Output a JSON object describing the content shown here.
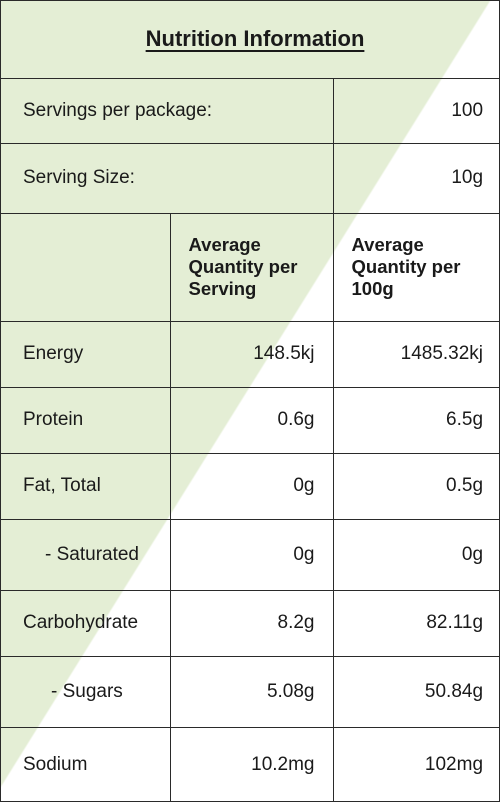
{
  "title": "Nutrition Information",
  "servings_per_package": {
    "label": "Servings per package:",
    "value": "100"
  },
  "serving_size": {
    "label": "Serving Size:",
    "value": "10g"
  },
  "columns": {
    "per_serving": "Average Quantity per Serving",
    "per_100g": "Average Quantity per 100g"
  },
  "rows": [
    {
      "label": "Energy",
      "per_serving": "148.5kj",
      "per_100g": "1485.32kj"
    },
    {
      "label": "Protein",
      "per_serving": "0.6g",
      "per_100g": "6.5g"
    },
    {
      "label": "Fat, Total",
      "per_serving": "0g",
      "per_100g": "0.5g"
    },
    {
      "label": "- Saturated",
      "per_serving": "0g",
      "per_100g": "0g"
    },
    {
      "label": "Carbohydrate",
      "per_serving": "8.2g",
      "per_100g": "82.11g"
    },
    {
      "label": "- Sugars",
      "per_serving": "5.08g",
      "per_100g": "50.84g"
    },
    {
      "label": "Sodium",
      "per_serving": "10.2mg",
      "per_100g": "102mg"
    }
  ],
  "colors": {
    "background_wash": "#e4eed5",
    "border": "#2a2a2a"
  }
}
